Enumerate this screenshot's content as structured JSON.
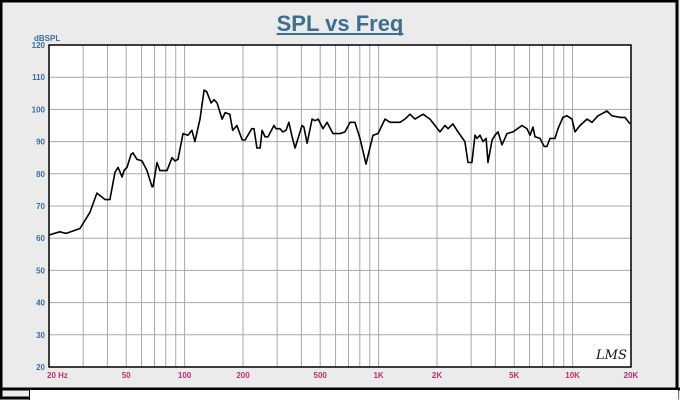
{
  "chart_data": {
    "type": "line",
    "title": "SPL vs Freq",
    "xlabel": "",
    "ylabel": "dBSPL",
    "xscale": "log",
    "xlim": [
      20,
      20000
    ],
    "ylim": [
      20,
      120
    ],
    "grid": true,
    "yticks": [
      20,
      30,
      40,
      50,
      60,
      70,
      80,
      90,
      100,
      110,
      120
    ],
    "xticks": [
      {
        "value": 20,
        "label": "20 Hz"
      },
      {
        "value": 50,
        "label": "50"
      },
      {
        "value": 100,
        "label": "100"
      },
      {
        "value": 200,
        "label": "200"
      },
      {
        "value": 500,
        "label": "500"
      },
      {
        "value": 1000,
        "label": "1K"
      },
      {
        "value": 2000,
        "label": "2K"
      },
      {
        "value": 5000,
        "label": "5K"
      },
      {
        "value": 10000,
        "label": "10K"
      },
      {
        "value": 20000,
        "label": "20K"
      }
    ],
    "series": [
      {
        "name": "SPL",
        "color": "#000000",
        "x": [
          20,
          22.7,
          24.5,
          28.9,
          32.5,
          35.3,
          38.9,
          41.2,
          43.8,
          45.4,
          47.6,
          48.7,
          50.5,
          52.9,
          54.2,
          56.8,
          60.3,
          64,
          67.9,
          68.7,
          72.1,
          74.6,
          81.1,
          86.1,
          89.2,
          92.5,
          98.1,
          104,
          109,
          113,
          120,
          126,
          130,
          137,
          142,
          147,
          156,
          162,
          171,
          177,
          186,
          198,
          205,
          222,
          228,
          236,
          245,
          251,
          260,
          269,
          289,
          296,
          310,
          321,
          333,
          345,
          358,
          371,
          403,
          412,
          428,
          454,
          470,
          488,
          517,
          542,
          582,
          632,
          671,
          713,
          755,
          802,
          861,
          936,
          993,
          1079,
          1146,
          1289,
          1368,
          1452,
          1541,
          1694,
          1841,
          2071,
          2199,
          2281,
          2416,
          2565,
          2786,
          2890,
          3028,
          3139,
          3214,
          3333,
          3452,
          3581,
          3665,
          3845,
          3983,
          4125,
          4328,
          4592,
          4932,
          5483,
          5820,
          6029,
          6252,
          6398,
          6792,
          7129,
          7384,
          7643,
          8115,
          8413,
          8916,
          9355,
          9931,
          10283,
          10915,
          11862,
          12590,
          13520,
          15030,
          15960,
          17540,
          18620,
          19770
        ],
        "y": [
          61,
          62,
          61.5,
          63,
          68,
          74,
          72,
          72,
          80.5,
          82,
          79,
          81,
          82,
          86,
          86.5,
          84.5,
          84,
          81,
          76,
          76,
          83.5,
          81,
          81,
          85,
          84,
          84.5,
          92.5,
          92,
          93.5,
          90,
          97,
          106,
          105.5,
          102,
          103,
          102,
          97,
          99,
          98.5,
          93.5,
          95,
          90.5,
          90.5,
          94,
          94,
          88,
          88,
          93.5,
          91.5,
          91.5,
          95,
          94,
          94,
          93,
          93.5,
          96,
          91.5,
          88,
          95,
          94.5,
          89.5,
          97,
          96.5,
          97,
          94,
          96,
          92.5,
          92.5,
          93,
          96,
          96,
          91,
          83,
          92,
          92.5,
          97,
          96,
          96,
          97,
          98.5,
          97,
          98.5,
          97,
          93,
          95,
          94,
          95.5,
          93,
          90,
          83.5,
          83.5,
          92,
          91,
          92,
          90,
          91,
          83.5,
          90.5,
          92,
          93,
          89,
          92.5,
          93,
          95,
          94,
          92,
          94.5,
          91.5,
          91,
          88.5,
          88.5,
          91,
          91,
          94,
          97.5,
          98,
          97,
          93,
          95,
          97,
          96,
          98,
          99.5,
          98,
          97.5,
          97.5,
          95.5
        ]
      }
    ],
    "annotations": [
      "LMS"
    ]
  }
}
